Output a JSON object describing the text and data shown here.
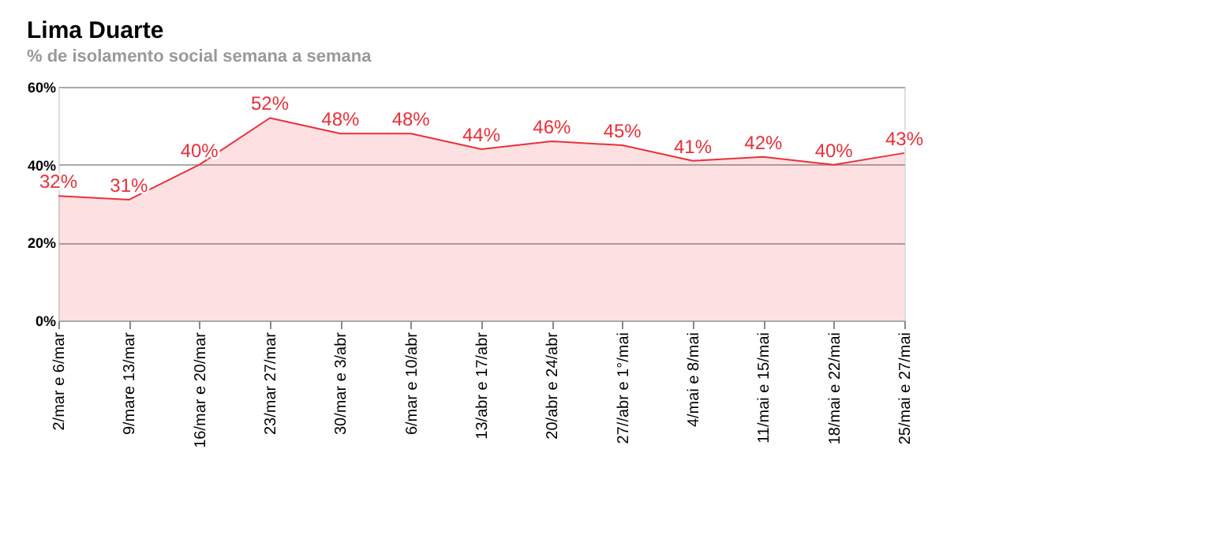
{
  "chart_data": {
    "type": "area",
    "title": "Lima Duarte",
    "subtitle": "% de isolamento social semana a semana",
    "categories": [
      "2/mar e 6/mar",
      "9/mare 13/mar",
      "16/mar e 20/mar",
      "23/mar 27/mar",
      "30/mar e 3/abr",
      "6/mar e 10/abr",
      "13/abr e 17/abr",
      "20/abr e 24/abr",
      "27//abr e 1°/mai",
      "4/mai e 8/mai",
      "11/mai e 15/mai",
      "18/mai e 22/mai",
      "25/mai e 27/mai"
    ],
    "series": [
      {
        "color": "#e8313a",
        "values": [
          32,
          31,
          40,
          52,
          48,
          48,
          44,
          46,
          45,
          41,
          42,
          40,
          43
        ],
        "value_labels": [
          "32%",
          "31%",
          "40%",
          "52%",
          "48%",
          "48%",
          "44%",
          "46%",
          "45%",
          "41%",
          "42%",
          "40%",
          "43%"
        ]
      }
    ],
    "ylim": [
      0,
      60
    ],
    "yticks": [
      {
        "value": 0,
        "label": "0%"
      },
      {
        "value": 20,
        "label": "20%"
      },
      {
        "value": 40,
        "label": "40%"
      },
      {
        "value": 60,
        "label": "60%"
      }
    ],
    "grid": "y"
  }
}
